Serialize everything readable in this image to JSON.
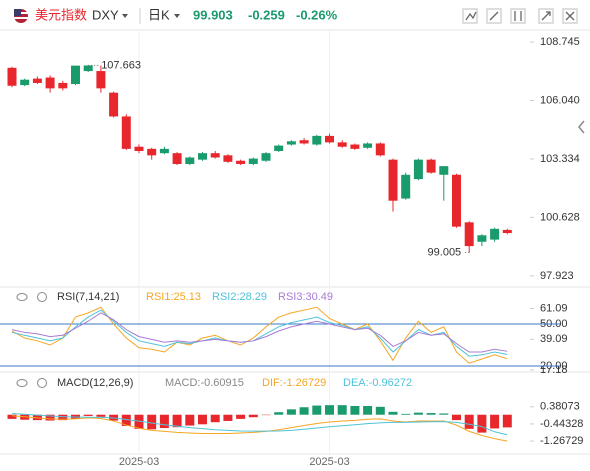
{
  "header": {
    "name": "美元指数",
    "symbol": "DXY",
    "period": "日K",
    "last": "99.903",
    "change": "-0.259",
    "change_pct": "-0.26%"
  },
  "chart_data": [
    {
      "type": "candlestick",
      "up_color": "#1a9b6c",
      "down_color": "#e8272d",
      "open": [
        107.55,
        106.75,
        107.05,
        107.1,
        106.85,
        106.8,
        107.4,
        107.4,
        106.4,
        105.3,
        103.9,
        103.8,
        103.6,
        103.6,
        103.1,
        103.3,
        103.6,
        103.5,
        103.25,
        103.1,
        103.25,
        103.7,
        104.0,
        104.2,
        104.0,
        104.4,
        104.1,
        104.0,
        103.85,
        104.05,
        103.3,
        101.5,
        102.4,
        103.3,
        102.6,
        102.6,
        100.4,
        99.5,
        99.6,
        100.05
      ],
      "high": [
        107.6,
        107.05,
        107.15,
        107.2,
        106.95,
        107.65,
        107.663,
        107.66,
        106.45,
        105.4,
        104.0,
        103.85,
        103.9,
        103.65,
        103.45,
        103.65,
        103.7,
        103.55,
        103.3,
        103.4,
        103.65,
        104.0,
        104.2,
        104.3,
        104.45,
        104.5,
        104.2,
        104.05,
        104.1,
        104.1,
        103.35,
        102.7,
        103.35,
        103.35,
        103.0,
        102.65,
        100.45,
        99.85,
        100.15,
        100.1
      ],
      "low": [
        106.65,
        106.7,
        106.8,
        106.4,
        106.5,
        106.75,
        107.35,
        106.4,
        105.25,
        103.75,
        103.6,
        103.3,
        103.55,
        103.05,
        103.05,
        103.25,
        103.35,
        103.15,
        103.05,
        103.05,
        103.2,
        103.65,
        103.95,
        104.0,
        103.95,
        104.05,
        103.85,
        103.75,
        103.8,
        103.45,
        100.9,
        101.45,
        102.35,
        102.65,
        101.4,
        100.15,
        99.005,
        99.3,
        99.5,
        99.85
      ],
      "close": [
        106.72,
        107.0,
        106.85,
        106.6,
        106.6,
        107.65,
        107.66,
        106.6,
        105.3,
        103.8,
        103.7,
        103.5,
        103.8,
        103.1,
        103.4,
        103.6,
        103.4,
        103.2,
        103.1,
        103.35,
        103.6,
        103.95,
        104.15,
        104.05,
        104.4,
        104.1,
        103.9,
        103.8,
        104.05,
        103.5,
        101.4,
        102.6,
        103.3,
        102.7,
        103.0,
        100.2,
        99.3,
        99.8,
        100.1,
        99.903
      ],
      "ylim": [
        97.5,
        109.3
      ],
      "yticks": [
        108.745,
        {
          "value": 106.04,
          "label": "106.040"
        },
        103.334,
        100.628,
        97.923
      ],
      "annotations": [
        {
          "index": 6,
          "value": 107.663
        },
        {
          "index": 36,
          "value": 99.005
        }
      ],
      "xticks": [
        {
          "value": 10,
          "label": "2025-03"
        },
        {
          "value": 25,
          "label": "2025-03"
        }
      ]
    },
    {
      "type": "line",
      "title": "RSI(7,14,21)",
      "ylim": [
        15.7,
        62.9
      ],
      "yticks": [
        61.09,
        {
          "value": 50,
          "label": "50.00"
        },
        39.09,
        {
          "value": 20,
          "label": "20.00"
        },
        17.18
      ],
      "hlines": [
        50,
        20
      ],
      "hline_color": "#3a78c9",
      "series": [
        {
          "name": "RSI1:25.13",
          "color": "#f5a623",
          "values": [
            45,
            40,
            38,
            35,
            40,
            55,
            58,
            62,
            50,
            40,
            33,
            32,
            30,
            37,
            35,
            40,
            42,
            38,
            35,
            40,
            48,
            55,
            58,
            60,
            62,
            54,
            50,
            46,
            50,
            38,
            24,
            40,
            52,
            44,
            48,
            30,
            22,
            25,
            28,
            25.13
          ]
        },
        {
          "name": "RSI2:28.29",
          "color": "#4fc3d9",
          "values": [
            44,
            42,
            40,
            38,
            40,
            48,
            55,
            60,
            52,
            44,
            38,
            36,
            34,
            37,
            36,
            38,
            40,
            38,
            37,
            38,
            43,
            48,
            51,
            53,
            55,
            51,
            49,
            46,
            48,
            40,
            30,
            38,
            46,
            42,
            44,
            34,
            27,
            28,
            30,
            28.29
          ]
        },
        {
          "name": "RSI3:30.49",
          "color": "#a77bd6",
          "values": [
            46,
            44,
            43,
            41,
            42,
            47,
            52,
            58,
            53,
            46,
            41,
            39,
            37,
            38,
            37,
            38,
            39,
            38,
            37,
            38,
            41,
            45,
            48,
            50,
            52,
            50,
            48,
            46,
            47,
            42,
            34,
            38,
            44,
            42,
            43,
            36,
            30,
            30,
            32,
            30.49
          ]
        }
      ]
    },
    {
      "type": "macd",
      "title": "MACD(12,26,9)",
      "ylim": [
        -1.6,
        0.9
      ],
      "yticks": [
        0.38073,
        -0.44328,
        -1.26729
      ],
      "hist_name": "MACD:-0.60915",
      "hist_label_color": "#888888",
      "hist": [
        -0.2,
        -0.24,
        -0.26,
        -0.28,
        -0.26,
        -0.18,
        -0.06,
        -0.1,
        -0.28,
        -0.54,
        -0.68,
        -0.7,
        -0.64,
        -0.6,
        -0.52,
        -0.46,
        -0.36,
        -0.3,
        -0.2,
        -0.12,
        -0.02,
        0.12,
        0.26,
        0.36,
        0.44,
        0.46,
        0.46,
        0.42,
        0.42,
        0.38,
        0.14,
        0.04,
        0.1,
        0.08,
        0.06,
        -0.26,
        -0.68,
        -0.86,
        -0.66,
        -0.60915
      ],
      "series": [
        {
          "name": "DIF:-1.26729",
          "color": "#f5a623",
          "values": [
            -0.05,
            -0.1,
            -0.15,
            -0.2,
            -0.22,
            -0.2,
            -0.15,
            -0.18,
            -0.3,
            -0.5,
            -0.65,
            -0.75,
            -0.8,
            -0.85,
            -0.88,
            -0.9,
            -0.9,
            -0.9,
            -0.88,
            -0.85,
            -0.8,
            -0.72,
            -0.62,
            -0.52,
            -0.42,
            -0.35,
            -0.3,
            -0.27,
            -0.22,
            -0.2,
            -0.3,
            -0.35,
            -0.3,
            -0.3,
            -0.3,
            -0.5,
            -0.8,
            -1.0,
            -1.15,
            -1.26729
          ]
        },
        {
          "name": "DEA:-0.96272",
          "color": "#4fc3d9",
          "values": [
            0.05,
            0.02,
            -0.02,
            -0.06,
            -0.09,
            -0.11,
            -0.12,
            -0.13,
            -0.16,
            -0.23,
            -0.31,
            -0.4,
            -0.48,
            -0.55,
            -0.62,
            -0.67,
            -0.72,
            -0.75,
            -0.78,
            -0.79,
            -0.79,
            -0.78,
            -0.75,
            -0.7,
            -0.64,
            -0.58,
            -0.53,
            -0.48,
            -0.43,
            -0.39,
            -0.37,
            -0.37,
            -0.35,
            -0.34,
            -0.33,
            -0.37,
            -0.46,
            -0.57,
            -0.82,
            -0.96272
          ]
        }
      ]
    }
  ]
}
